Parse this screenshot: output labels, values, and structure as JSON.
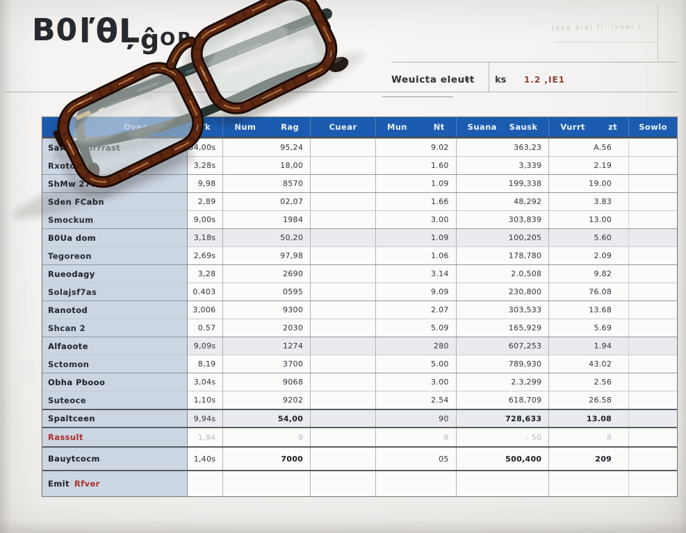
{
  "title": {
    "parts": [
      "B0",
      "ľθĻ",
      "ĝ",
      "OR·"
    ]
  },
  "corner_note": "Iasa eiai ti.  isaai  c.",
  "subheader": {
    "label": "Weuicta eleuŧt",
    "unit": "ks",
    "value": "1.2 ,IE1"
  },
  "colors": {
    "header_blue": "#1b5cb0",
    "label_column_bg": "#ccd6e3",
    "shaded_row_bg": "#e9ebee",
    "red_text": "#b23431",
    "paper": "#f4f3f1"
  },
  "table": {
    "header": {
      "c0": "Oveaurks",
      "c1": "Tk",
      "c2": [
        "Num",
        "Rag"
      ],
      "c3": "Cuear",
      "c4": [
        "Mun",
        "Nt"
      ],
      "c5": [
        "Suana",
        "Sausk"
      ],
      "c6": [
        "Vurrt",
        "zt"
      ],
      "c7": "Sowlo"
    },
    "rows": [
      {
        "label": "Saft Brhorrrast",
        "a": "54,00s",
        "b": "95,24",
        "c": "9.02",
        "d": "363,23",
        "e": "A.56",
        "bold_label": true
      },
      {
        "label": "Rxotoue",
        "a": "3,28s",
        "b": "18,00",
        "c": "1.60",
        "d": "3,339",
        "e": "2.19"
      },
      {
        "label": "ShMw 2700",
        "a": "9,98",
        "b": "8570",
        "c": "1.09",
        "d": "199,338",
        "e": "19.00",
        "bold_label": true
      },
      {
        "label": "Sden FCabn",
        "a": "2,89",
        "b": "02,07",
        "c": "1.66",
        "d": "48,292",
        "e": "3.83",
        "bold_label": true
      },
      {
        "label": "Smockum",
        "a": "9,00s",
        "b": "1984",
        "c": "3.00",
        "d": "303,839",
        "e": "13.00"
      },
      {
        "label": "B0Ua dom",
        "a": "3,18s",
        "b": "50,20",
        "c": "1.09",
        "d": "100,205",
        "e": "5.60",
        "bold_label": true,
        "shaded": true
      },
      {
        "label": "Tegoreon",
        "a": "2,69s",
        "b": "97,98",
        "c": "1.06",
        "d": "178,780",
        "e": "2.09"
      },
      {
        "label": "Rueodagy",
        "a": "3,28",
        "b": "2690",
        "c": "3.14",
        "d": "2.0,508",
        "e": "9.82",
        "bold_label": true
      },
      {
        "label": "Solajsf7as",
        "a": "0.403",
        "b": "0595",
        "c": "9.09",
        "d": "230,800",
        "e": "76.08"
      },
      {
        "label": "Ranotod",
        "a": "3,006",
        "b": "9300",
        "c": "2.07",
        "d": "303,533",
        "e": "13.68",
        "bold_label": true
      },
      {
        "label": "Shcan 2",
        "a": "0.57",
        "b": "2030",
        "c": "5.09",
        "d": "165,929",
        "e": "5.69"
      },
      {
        "label": "Alfaoote",
        "a": "9,09s",
        "b": "1274",
        "c": "280",
        "d": "607,253",
        "e": "1.94",
        "bold_label": true,
        "shaded": true
      },
      {
        "label": "Sctomon",
        "a": "8,19",
        "b": "3700",
        "c": "5.00",
        "d": "789,930",
        "e": "43.02"
      },
      {
        "label": "Obha Pbooo",
        "a": "3,04s",
        "b": "9068",
        "c": "3.00",
        "d": "2.3,299",
        "e": "2.56",
        "bold_label": true
      },
      {
        "label": "Suteoce",
        "a": "1,10s",
        "b": "9202",
        "c": "2.54",
        "d": "618,709",
        "e": "26.58"
      },
      {
        "label": "Spaltceen",
        "a": "9,94s",
        "b": "54,00",
        "c": "90",
        "d": "728,633",
        "e": "13.08",
        "bold_label": true,
        "shaded": true,
        "bold_values": true,
        "thick_top": true
      },
      {
        "label": "Rassult",
        "a": "1,94",
        "b": "9",
        "c": "8",
        "d": "- 50",
        "e": "8",
        "label_red": true,
        "faint_values": true,
        "thick_top": true
      },
      {
        "label": "Bauytcocm",
        "a": "1,40s",
        "b": "7000",
        "c": "05",
        "d": "500,400",
        "e": "209",
        "bold_label": true,
        "bold_values": true,
        "thick_top": true
      },
      {
        "label": "Emit",
        "label_suffix": "Rfver",
        "a": "",
        "b": "",
        "c": "",
        "d": "",
        "e": "",
        "bold_label": true,
        "thick_top": true
      }
    ]
  }
}
